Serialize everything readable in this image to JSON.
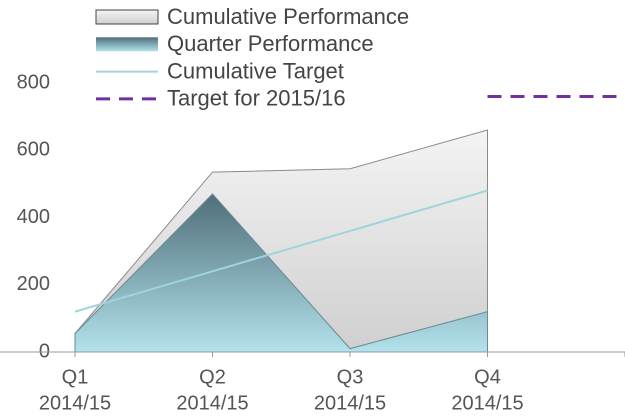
{
  "chart_data": {
    "type": "area",
    "categories": [
      [
        "Q1",
        "2014/15"
      ],
      [
        "Q2",
        "2014/15"
      ],
      [
        "Q3",
        "2014/15"
      ],
      [
        "Q4",
        "2014/15"
      ],
      null
    ],
    "series": [
      {
        "name": "Cumulative Performance",
        "type": "area",
        "colors": [
          "#f4f4f4",
          "#cfcfcf"
        ],
        "stroke": "#8a8a8a",
        "values": [
          55,
          535,
          545,
          660,
          null
        ]
      },
      {
        "name": "Quarter Performance",
        "type": "area",
        "colors": [
          "#4f6e79",
          "#b2e2ec"
        ],
        "stroke": "#6a8a94",
        "values": [
          55,
          470,
          10,
          120,
          null
        ]
      },
      {
        "name": "Cumulative Target",
        "type": "line",
        "color": "#9fd3e0",
        "values": [
          120,
          240,
          360,
          480,
          null
        ]
      },
      {
        "name": "Target for 2015/16",
        "type": "line",
        "color": "#7030a0",
        "dashed": true,
        "values": [
          null,
          null,
          null,
          760,
          760
        ]
      }
    ],
    "ylim": [
      0,
      800
    ],
    "yticks": [
      0,
      200,
      400,
      600,
      800
    ],
    "legend": "top-left"
  }
}
